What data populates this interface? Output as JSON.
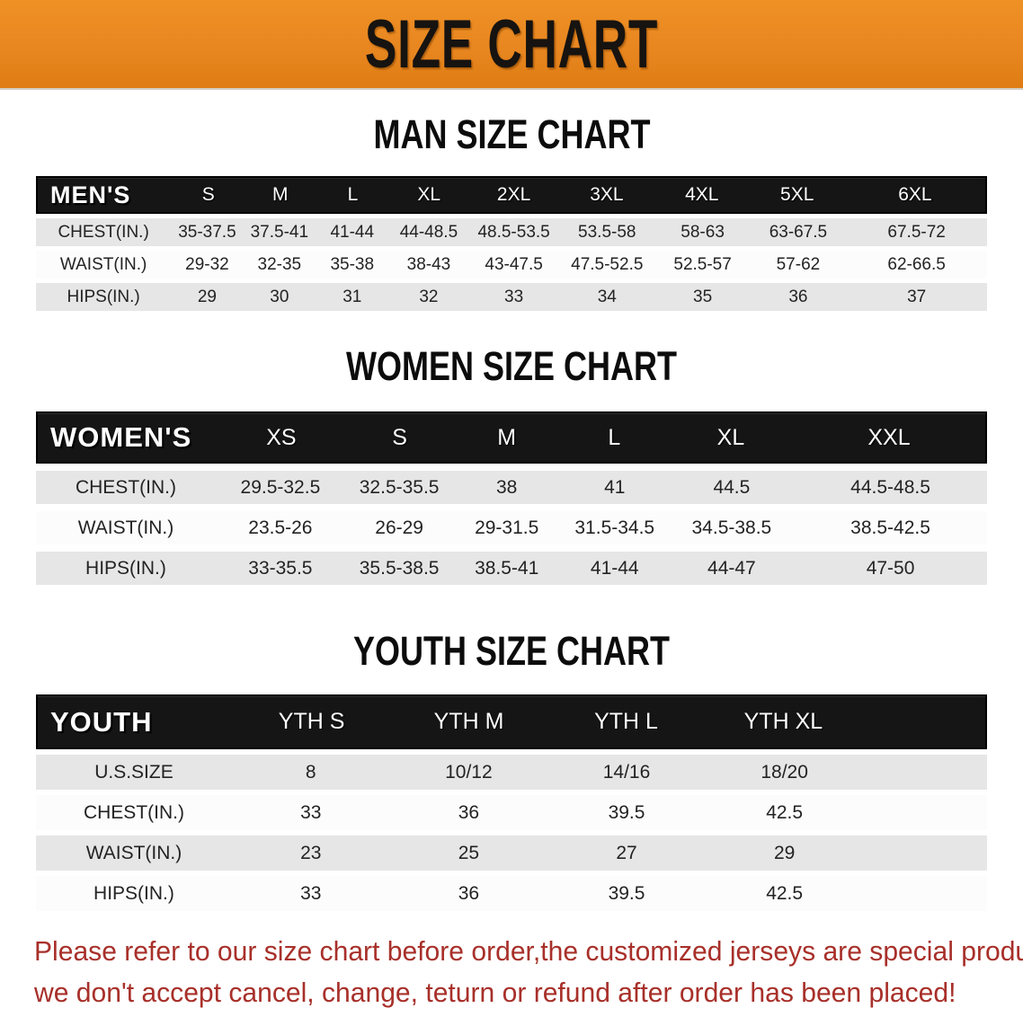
{
  "banner": {
    "title": "SIZE CHART"
  },
  "sections": [
    {
      "heading": "MAN SIZE CHART",
      "table": {
        "label": "MEN'S",
        "columns": [
          "S",
          "M",
          "L",
          "XL",
          "2XL",
          "3XL",
          "4XL",
          "5XL",
          "6XL"
        ],
        "rows": [
          {
            "label": "CHEST(IN.)",
            "values": [
              "35-37.5",
              "37.5-41",
              "41-44",
              "44-48.5",
              "48.5-53.5",
              "53.5-58",
              "58-63",
              "63-67.5",
              "67.5-72"
            ]
          },
          {
            "label": "WAIST(IN.)",
            "values": [
              "29-32",
              "32-35",
              "35-38",
              "38-43",
              "43-47.5",
              "47.5-52.5",
              "52.5-57",
              "57-62",
              "62-66.5"
            ]
          },
          {
            "label": "HIPS(IN.)",
            "values": [
              "29",
              "30",
              "31",
              "32",
              "33",
              "34",
              "35",
              "36",
              "37"
            ]
          }
        ]
      }
    },
    {
      "heading": "WOMEN SIZE CHART",
      "table": {
        "label": "WOMEN'S",
        "columns": [
          "XS",
          "S",
          "M",
          "L",
          "XL",
          "XXL"
        ],
        "rows": [
          {
            "label": "CHEST(IN.)",
            "values": [
              "29.5-32.5",
              "32.5-35.5",
              "38",
              "41",
              "44.5",
              "44.5-48.5"
            ]
          },
          {
            "label": "WAIST(IN.)",
            "values": [
              "23.5-26",
              "26-29",
              "29-31.5",
              "31.5-34.5",
              "34.5-38.5",
              "38.5-42.5"
            ]
          },
          {
            "label": "HIPS(IN.)",
            "values": [
              "33-35.5",
              "35.5-38.5",
              "38.5-41",
              "41-44",
              "44-47",
              "47-50"
            ]
          }
        ]
      }
    },
    {
      "heading": "YOUTH SIZE CHART",
      "table": {
        "label": "YOUTH",
        "columns": [
          "YTH S",
          "YTH M",
          "YTH L",
          "YTH XL"
        ],
        "rows": [
          {
            "label": "U.S.SIZE",
            "values": [
              "8",
              "10/12",
              "14/16",
              "18/20"
            ]
          },
          {
            "label": "CHEST(IN.)",
            "values": [
              "33",
              "36",
              "39.5",
              "42.5"
            ]
          },
          {
            "label": "WAIST(IN.)",
            "values": [
              "23",
              "25",
              "27",
              "29"
            ]
          },
          {
            "label": "HIPS(IN.)",
            "values": [
              "33",
              "36",
              "39.5",
              "42.5"
            ]
          }
        ]
      }
    }
  ],
  "disclaimer": {
    "line1": "Please refer to our size chart before order,the customized jerseys are special products,",
    "line2": "we don't accept cancel, change, teturn or refund after order has been placed!"
  },
  "colors": {
    "banner_bg": "#e88620",
    "header_bg": "#151515",
    "row_gray": "#e6e6e7",
    "row_white": "#fcfcfc",
    "disclaimer_text": "#a8302a"
  }
}
